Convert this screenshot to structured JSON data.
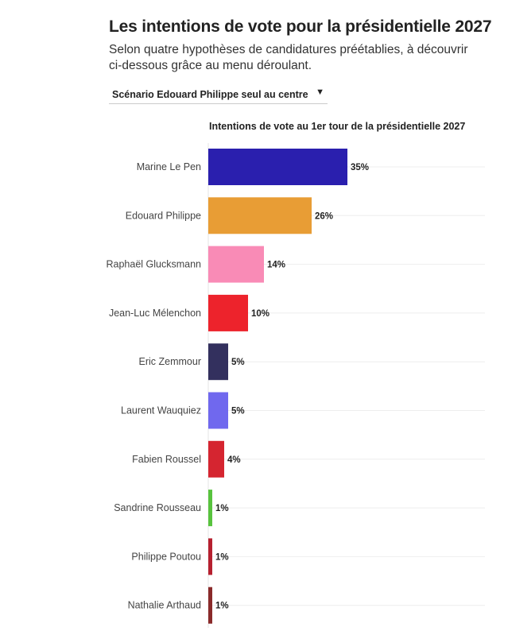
{
  "header": {
    "title": "Les intentions de vote pour la présidentielle 2027",
    "subtitle": "Selon quatre hypothèses de candidatures préétablies, à découvrir ci-dessous grâce au menu déroulant."
  },
  "dropdown": {
    "selected": "Scénario Edouard Philippe seul au centre",
    "icon": "caret-down-icon"
  },
  "chart_data": {
    "type": "bar",
    "orientation": "horizontal",
    "title": "Intentions de vote au 1er tour de la présidentielle 2027",
    "categories": [
      "Marine Le Pen",
      "Edouard Philippe",
      "Raphaël Glucksmann",
      "Jean-Luc Mélenchon",
      "Eric Zemmour",
      "Laurent Wauquiez",
      "Fabien Roussel",
      "Sandrine Rousseau",
      "Philippe Poutou",
      "Nathalie Arthaud"
    ],
    "values": [
      35,
      26,
      14,
      10,
      5,
      5,
      4,
      1,
      1,
      1
    ],
    "labels": [
      "35%",
      "26%",
      "14%",
      "10%",
      "5%",
      "5%",
      "4%",
      "1%",
      "1%",
      "1%"
    ],
    "colors": [
      "#2a1fae",
      "#e89d35",
      "#f98bb6",
      "#ed232c",
      "#33305e",
      "#7068ee",
      "#d52530",
      "#58c33e",
      "#b6202f",
      "#8a2a2a"
    ],
    "xlim": [
      0,
      70
    ],
    "unit": "%",
    "grid": true
  }
}
